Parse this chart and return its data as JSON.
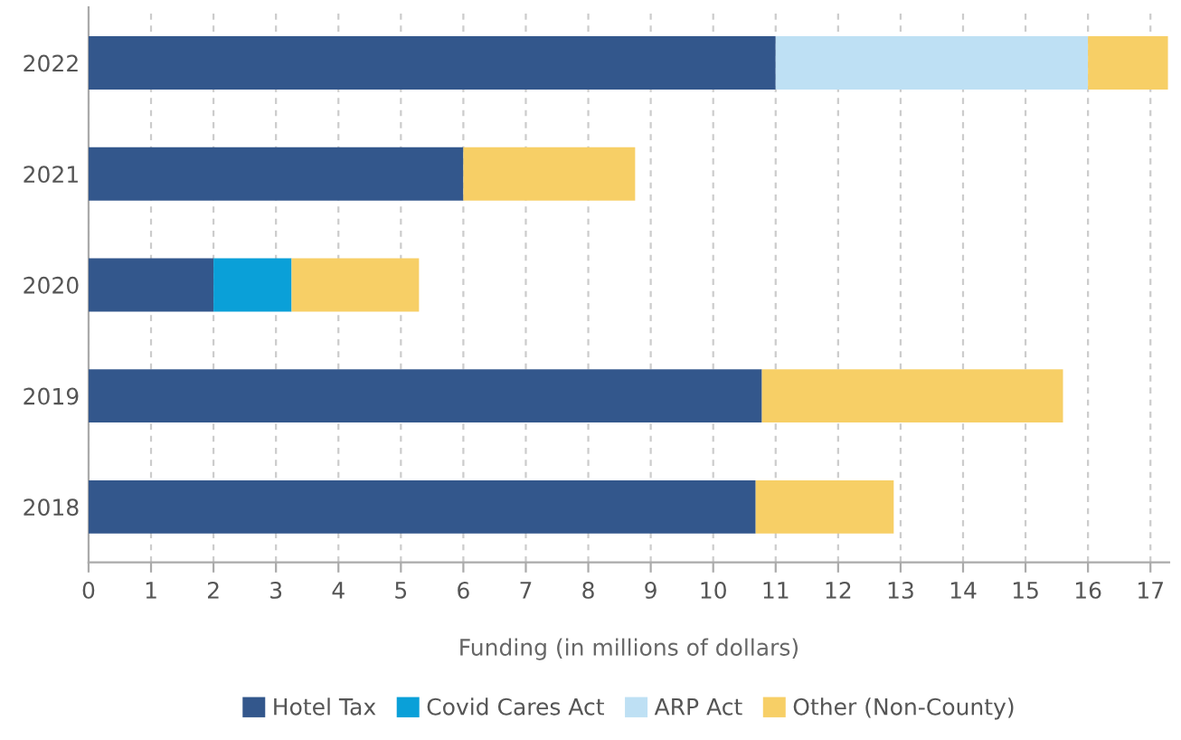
{
  "chart_data": {
    "type": "bar",
    "orientation": "horizontal",
    "stacked": true,
    "xlabel": "Funding (in millions of dollars)",
    "categories": [
      "2022",
      "2021",
      "2020",
      "2019",
      "2018"
    ],
    "series": [
      {
        "name": "Hotel Tax",
        "color": "#33578c",
        "values": [
          11,
          6,
          2,
          10.78,
          10.68
        ]
      },
      {
        "name": "Covid Cares Act",
        "color": "#0aa0d8",
        "values": [
          null,
          null,
          1.25,
          null,
          null
        ]
      },
      {
        "name": "ARP Act",
        "color": "#bee0f4",
        "values": [
          5,
          null,
          null,
          null,
          null
        ]
      },
      {
        "name": "Other (Non-County)",
        "color": "#f7cf66",
        "values": [
          1.28,
          2.75,
          2.04,
          4.82,
          2.21
        ]
      }
    ],
    "xlim": [
      0,
      17.3
    ],
    "xticks": [
      0,
      1,
      2,
      3,
      4,
      5,
      6,
      7,
      8,
      9,
      10,
      11,
      12,
      13,
      14,
      15,
      16,
      17
    ],
    "grid": "x",
    "legend": "bottom"
  }
}
